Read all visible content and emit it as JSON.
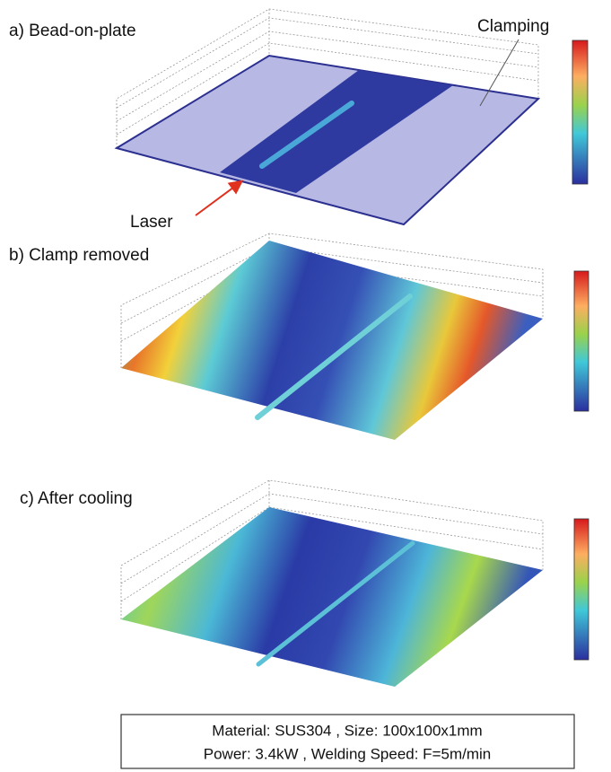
{
  "panels": [
    {
      "label": "a) Bead-on-plate",
      "annotations": [
        "Clamping",
        "Laser"
      ]
    },
    {
      "label": "b) Clamp removed"
    },
    {
      "label": "c) After cooling"
    }
  ],
  "caption": {
    "lines": [
      "Material: SUS304 , Size: 100x100x1mm",
      "Power: 3.4kW , Welding Speed: F=5m/min"
    ]
  }
}
